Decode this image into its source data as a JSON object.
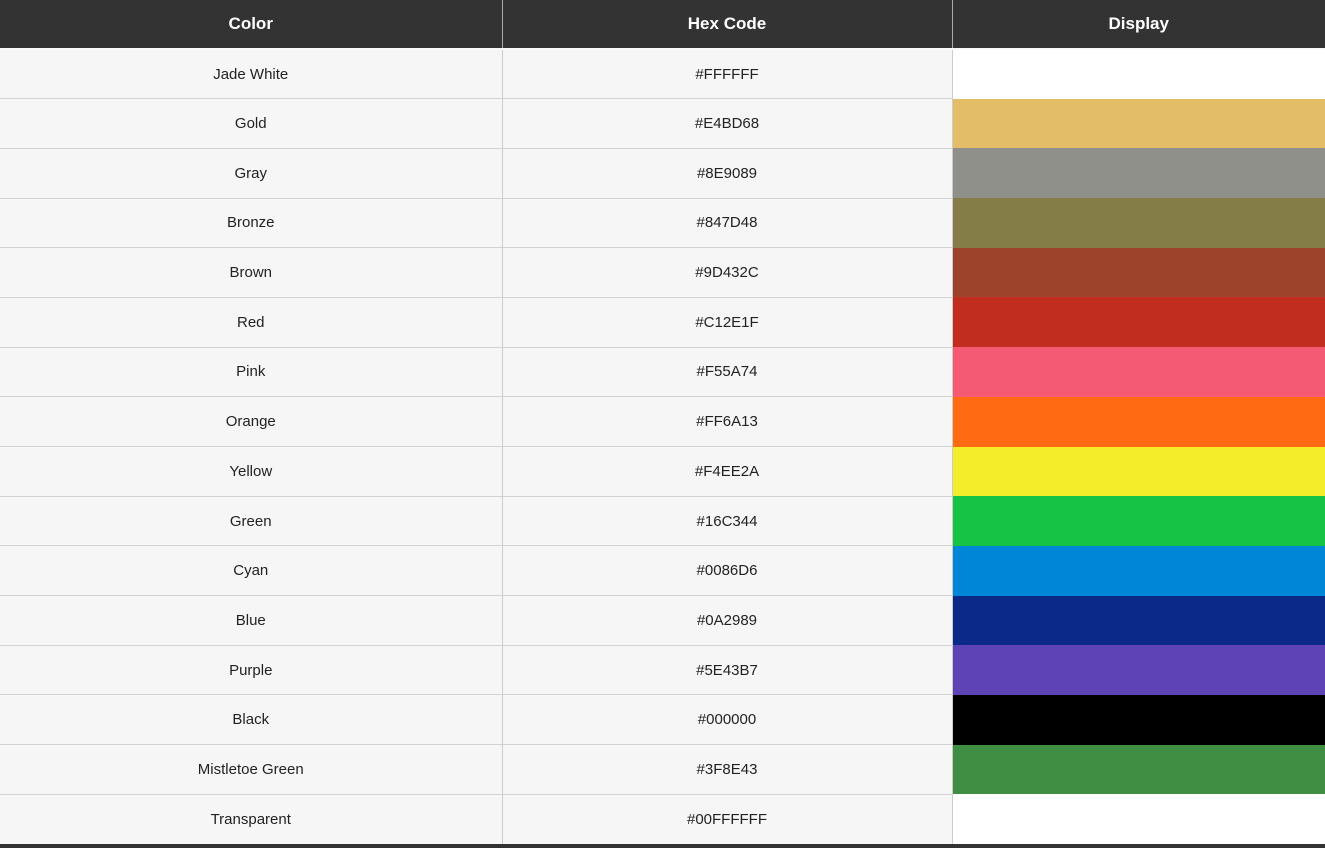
{
  "table": {
    "headers": [
      "Color",
      "Hex Code",
      "Display"
    ],
    "rows": [
      {
        "name": "Jade White",
        "hex": "#FFFFFF",
        "swatch": "#FFFFFF"
      },
      {
        "name": "Gold",
        "hex": "#E4BD68",
        "swatch": "#E4BD68"
      },
      {
        "name": "Gray",
        "hex": "#8E9089",
        "swatch": "#8E9089"
      },
      {
        "name": "Bronze",
        "hex": "#847D48",
        "swatch": "#847D48"
      },
      {
        "name": "Brown",
        "hex": "#9D432C",
        "swatch": "#9D432C"
      },
      {
        "name": "Red",
        "hex": "#C12E1F",
        "swatch": "#C12E1F"
      },
      {
        "name": "Pink",
        "hex": "#F55A74",
        "swatch": "#F55A74"
      },
      {
        "name": "Orange",
        "hex": "#FF6A13",
        "swatch": "#FF6A13"
      },
      {
        "name": "Yellow",
        "hex": "#F4EE2A",
        "swatch": "#F4EE2A"
      },
      {
        "name": "Green",
        "hex": "#16C344",
        "swatch": "#16C344"
      },
      {
        "name": "Cyan",
        "hex": "#0086D6",
        "swatch": "#0086D6"
      },
      {
        "name": "Blue",
        "hex": "#0A2989",
        "swatch": "#0A2989"
      },
      {
        "name": "Purple",
        "hex": "#5E43B7",
        "swatch": "#5E43B7"
      },
      {
        "name": "Black",
        "hex": "#000000",
        "swatch": "#000000"
      },
      {
        "name": "Mistletoe Green",
        "hex": "#3F8E43",
        "swatch": "#3F8E43"
      },
      {
        "name": "Transparent",
        "hex": "#00FFFFFF",
        "swatch": "transparent"
      }
    ]
  },
  "colors": {
    "header_bg": "#333333",
    "header_text": "#FFFFFF",
    "header_divider": "#AAAAAA",
    "row_bg": "#F6F6F6",
    "row_border": "#D2D2D2",
    "col_divider": "#CCCCCC",
    "text": "#222222",
    "bottom_bar": "#333333",
    "page_bg": "#FFFFFF"
  }
}
